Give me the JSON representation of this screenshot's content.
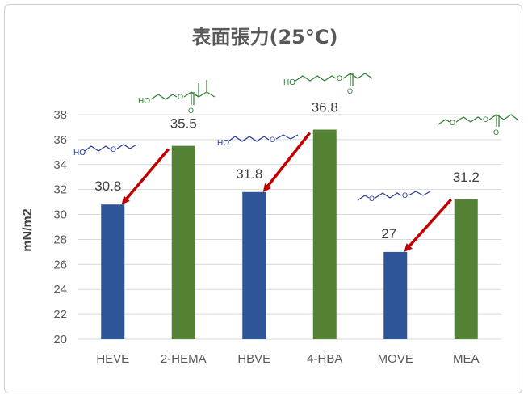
{
  "chart_data": {
    "type": "bar",
    "title": "表面張力(25°C)",
    "ylabel": "mN/m2",
    "xlabel": "",
    "ylim": [
      20,
      38
    ],
    "yticks": [
      20,
      22,
      24,
      26,
      28,
      30,
      32,
      34,
      36,
      38
    ],
    "categories": [
      "HEVE",
      "2-HEMA",
      "HBVE",
      "4-HBA",
      "MOVE",
      "MEA"
    ],
    "values": [
      30.8,
      35.5,
      31.8,
      36.8,
      27,
      31.2
    ],
    "data_labels": [
      "30.8",
      "35.5",
      "31.8",
      "36.8",
      "27",
      "31.2"
    ],
    "bar_colors": [
      "#2e5597",
      "#548235",
      "#2e5597",
      "#548235",
      "#2e5597",
      "#548235"
    ],
    "grid": true,
    "annotations": [
      {
        "type": "arrow",
        "from_category": "2-HEMA",
        "to_category": "HEVE",
        "color": "#c00000"
      },
      {
        "type": "arrow",
        "from_category": "4-HBA",
        "to_category": "HBVE",
        "color": "#c00000"
      },
      {
        "type": "arrow",
        "from_category": "MEA",
        "to_category": "MOVE",
        "color": "#c00000"
      }
    ],
    "structure_images": [
      {
        "for": "HEVE",
        "text": "HO",
        "color": "#1f3a93"
      },
      {
        "for": "2-HEMA",
        "text": "HO",
        "color": "#2e7d32"
      },
      {
        "for": "HBVE",
        "text": "HO",
        "color": "#1f3a93"
      },
      {
        "for": "4-HBA",
        "text": "HO",
        "color": "#2e7d32"
      },
      {
        "for": "MOVE",
        "text": "",
        "color": "#1f3a93"
      },
      {
        "for": "MEA",
        "text": "",
        "color": "#2e7d32"
      }
    ]
  }
}
